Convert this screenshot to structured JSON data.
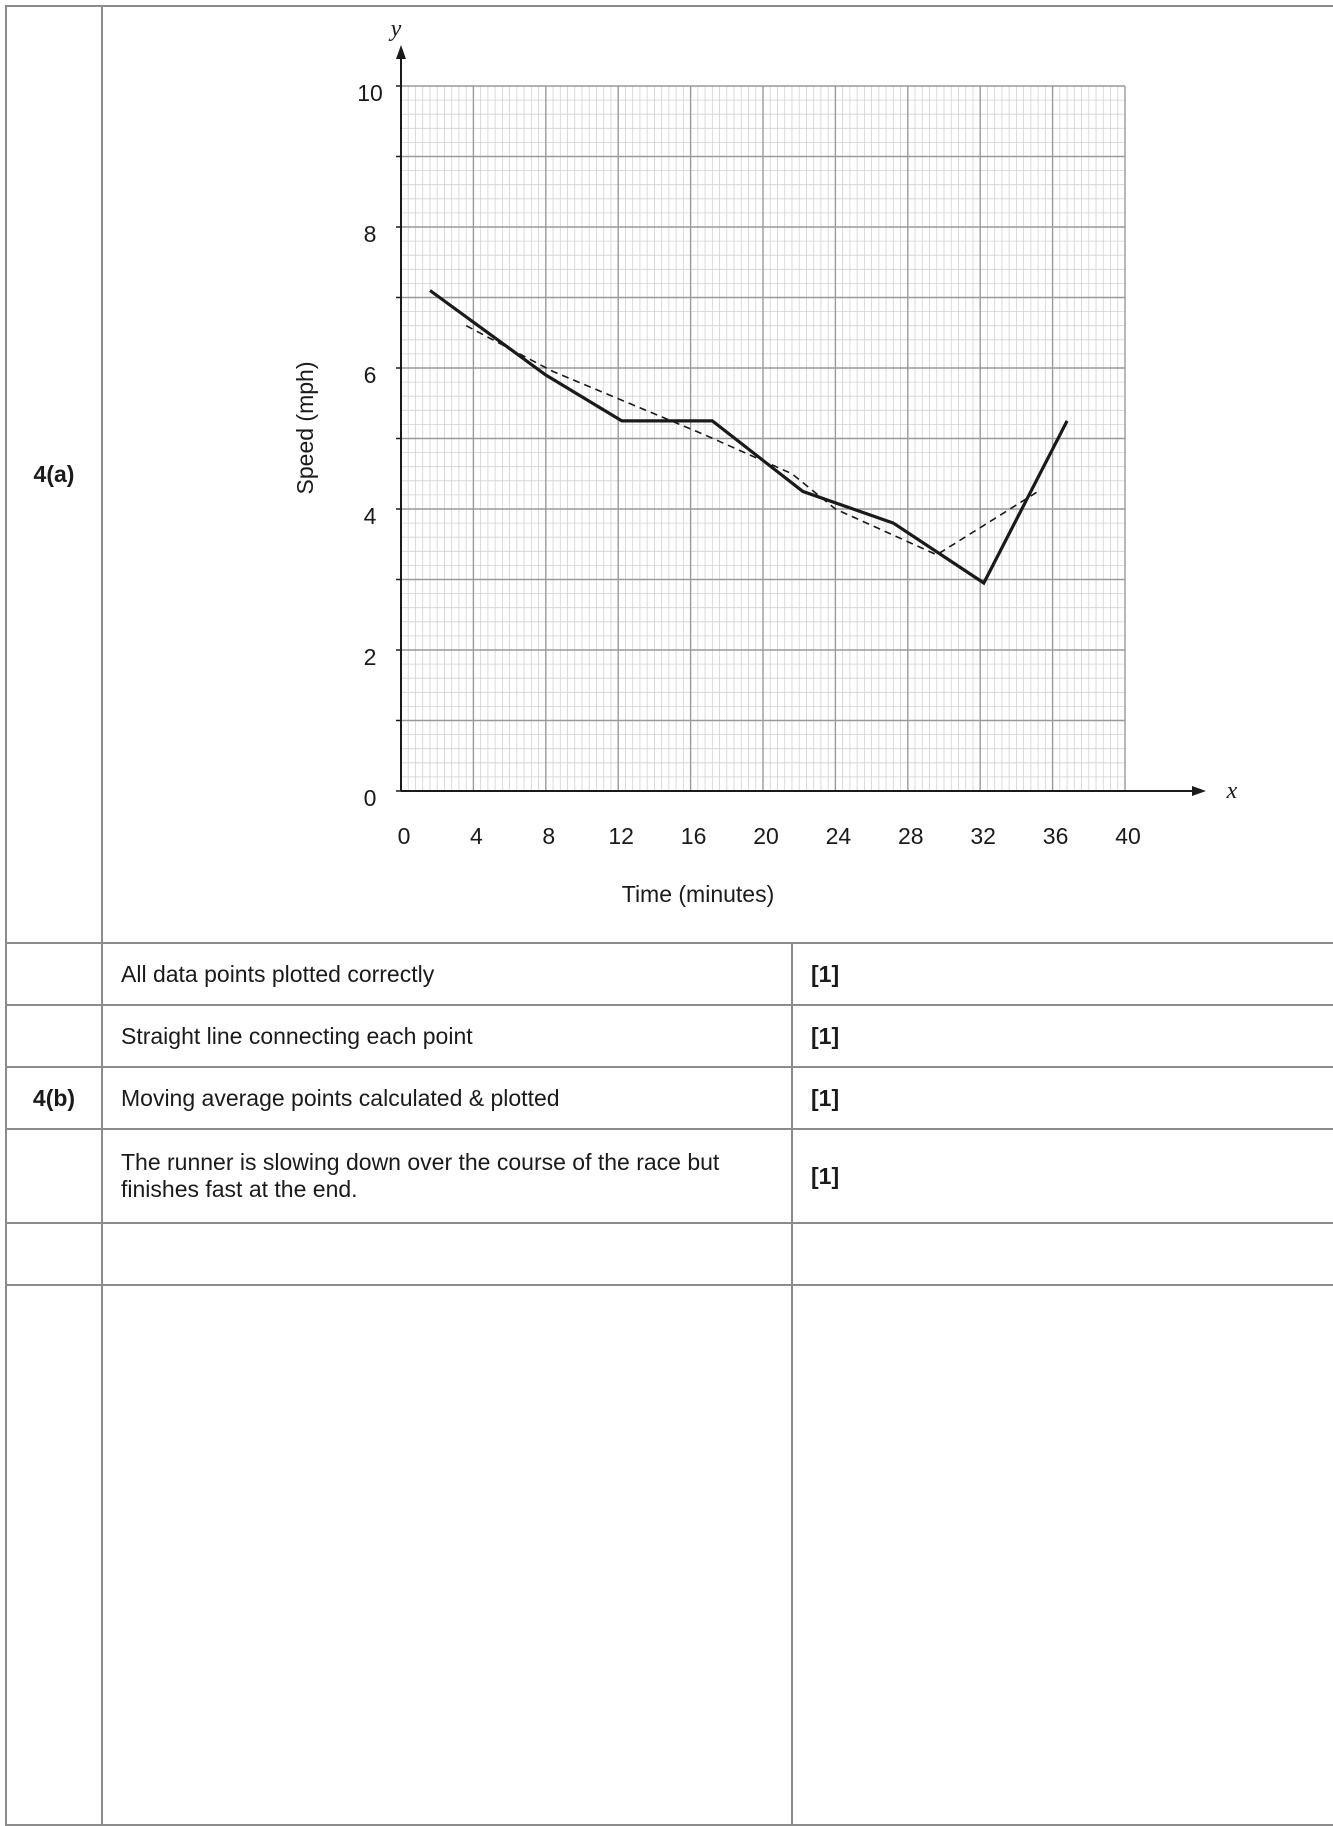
{
  "rows": {
    "r0": {
      "q": "4(a)"
    },
    "r1": {
      "q": "",
      "answer": "All data points plotted correctly",
      "mark": "[1]"
    },
    "r2": {
      "q": "",
      "answer": "Straight line connecting each point",
      "mark": "[1]"
    },
    "r3": {
      "q": "4(b)",
      "answer": "Moving average points calculated & plotted",
      "mark": "[1]"
    },
    "r4": {
      "q": "",
      "answer": "The runner is slowing down over the course of the race but finishes fast at the end.",
      "mark": "[1]"
    },
    "r5": {
      "q": "",
      "answer": "",
      "mark": ""
    },
    "r6": {
      "q": "",
      "answer": "",
      "mark": ""
    }
  },
  "chart_data": {
    "type": "line",
    "title": "",
    "xlabel": "Time (minutes)",
    "ylabel": "Speed (mph)",
    "x_var": "x",
    "y_var": "y",
    "xlim": [
      0,
      40
    ],
    "ylim": [
      0,
      10
    ],
    "x_ticks": [
      0,
      4,
      8,
      12,
      16,
      20,
      24,
      28,
      32,
      36,
      40
    ],
    "y_ticks": [
      0,
      2,
      4,
      6,
      8,
      10
    ],
    "grid": true,
    "series": [
      {
        "style": "solid",
        "x": [
          1.6,
          8,
          12.2,
          17.2,
          22.2,
          27.2,
          32.2,
          36.8
        ],
        "y": [
          7.1,
          5.9,
          5.25,
          5.25,
          4.25,
          3.8,
          2.95,
          5.25
        ]
      },
      {
        "style": "dashed",
        "x": [
          3.6,
          8.4,
          16.8,
          21.6,
          24,
          29.6,
          35.2
        ],
        "y": [
          6.6,
          5.95,
          5.05,
          4.5,
          4.0,
          3.35,
          4.25
        ]
      }
    ]
  }
}
